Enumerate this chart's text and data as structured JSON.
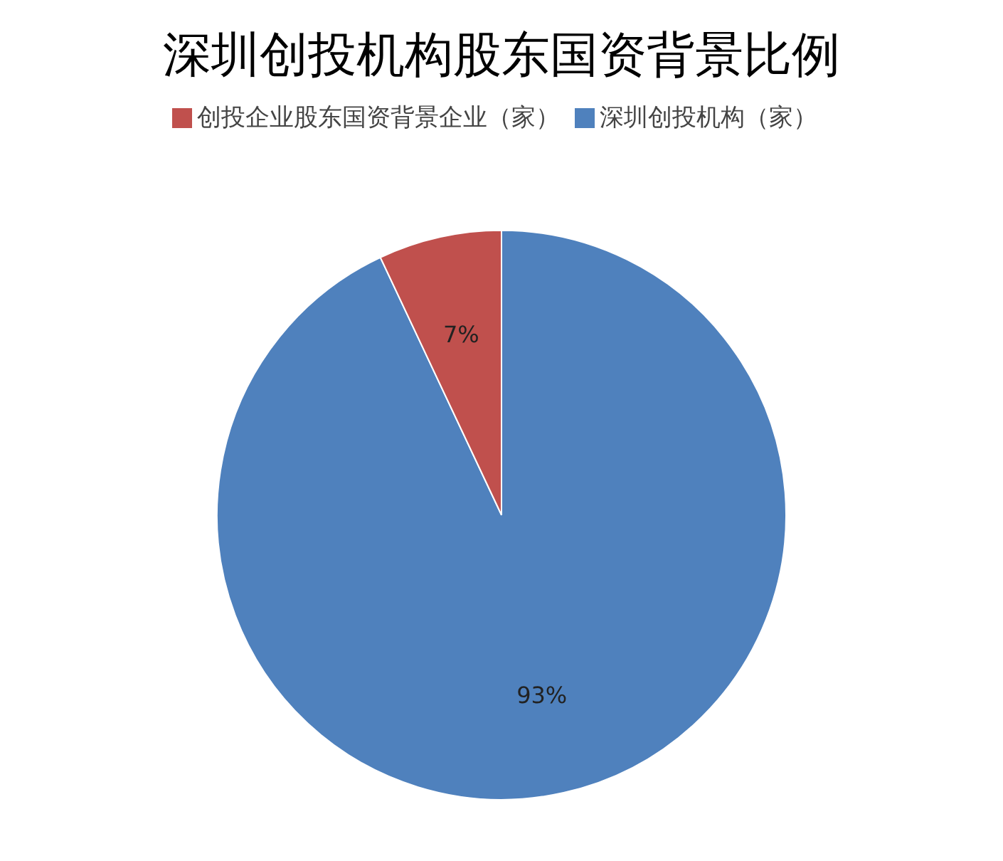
{
  "chart_data": {
    "type": "pie",
    "title": "深圳创投机构股东国资背景比例",
    "categories": [
      "深圳创投机构（家）",
      "创投企业股东国资背景企业（家）"
    ],
    "values": [
      93,
      7
    ],
    "colors": [
      "#4f81bd",
      "#c0504d"
    ],
    "value_labels": [
      "93%",
      "7%"
    ],
    "legend": "top"
  }
}
